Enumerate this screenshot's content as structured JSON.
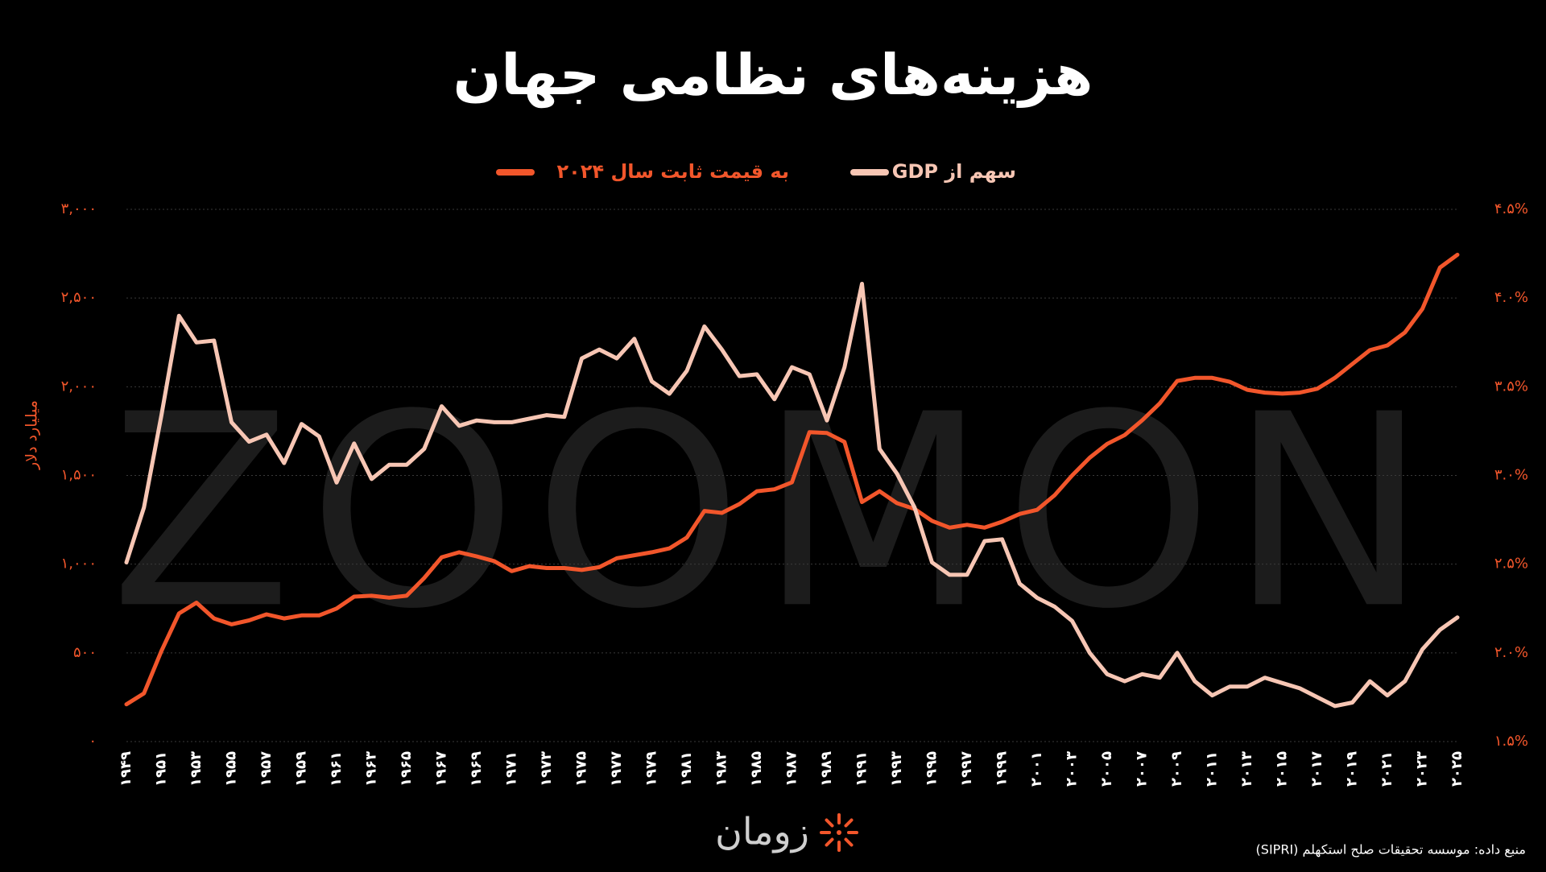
{
  "chart_data": {
    "type": "line",
    "title": "هزینه‌های نظامی جهان",
    "watermark": "ZOOMON",
    "y_label": "میلیارد دلار",
    "source": "منبع داده: موسسه تحقیقات صلح استکهلم (SIPRI)",
    "logo": "زومان",
    "categories": [
      "۱۹۴۹",
      null,
      "۱۹۵۱",
      null,
      "۱۹۵۳",
      null,
      "۱۹۵۵",
      null,
      "۱۹۵۷",
      null,
      "۱۹۵۹",
      null,
      "۱۹۶۱",
      null,
      "۱۹۶۳",
      null,
      "۱۹۶۵",
      null,
      "۱۹۶۷",
      null,
      "۱۹۶۹",
      null,
      "۱۹۷۱",
      null,
      "۱۹۷۳",
      null,
      "۱۹۷۵",
      null,
      "۱۹۷۷",
      null,
      "۱۹۷۹",
      null,
      "۱۹۸۱",
      null,
      "۱۹۸۳",
      null,
      "۱۹۸۵",
      null,
      "۱۹۸۷",
      null,
      "۱۹۸۹",
      null,
      "۱۹۹۱",
      null,
      "۱۹۹۳",
      null,
      "۱۹۹۵",
      null,
      "۱۹۹۷",
      null,
      "۱۹۹۹",
      null,
      "۲۰۰۱",
      null,
      "۲۰۰۳",
      null,
      "۲۰۰۵",
      null,
      "۲۰۰۷",
      null,
      "۲۰۰۹",
      null,
      "۲۰۱۱",
      null,
      "۲۰۱۳",
      null,
      "۲۰۱۵",
      null,
      "۲۰۱۷",
      null,
      "۲۰۱۹",
      null,
      "۲۰۲۱",
      null,
      "۲۰۲۳",
      null,
      "۲۰۲۵"
    ],
    "series": [
      {
        "name": "به قیمت ثابت سال ۲۰۲۴",
        "color": "#f2562b",
        "axis": "y",
        "values": [
          210,
          272,
          511,
          722,
          783,
          694,
          661,
          683,
          717,
          694,
          711,
          711,
          750,
          817,
          822,
          811,
          822,
          922,
          1039,
          1067,
          1044,
          1017,
          961,
          989,
          978,
          978,
          967,
          983,
          1033,
          1050,
          1067,
          1089,
          1150,
          1300,
          1289,
          1339,
          1411,
          1422,
          1461,
          1744,
          1739,
          1689,
          1350,
          1411,
          1344,
          1311,
          1244,
          1206,
          1222,
          1206,
          1239,
          1283,
          1306,
          1389,
          1500,
          1600,
          1678,
          1728,
          1811,
          1906,
          2033,
          2050,
          2050,
          2028,
          1983,
          1967,
          1961,
          1967,
          1989,
          2050,
          2128,
          2206,
          2233,
          2306,
          2439,
          2672,
          2744
        ]
      },
      {
        "name": "سهم از GDP",
        "color": "#f7c6b4",
        "axis": "y2",
        "values": [
          2.51,
          2.82,
          3.34,
          3.9,
          3.75,
          3.76,
          3.3,
          3.19,
          3.23,
          3.07,
          3.29,
          3.22,
          2.96,
          3.18,
          2.98,
          3.06,
          3.06,
          3.15,
          3.39,
          3.28,
          3.31,
          3.3,
          3.3,
          3.32,
          3.34,
          3.33,
          3.66,
          3.71,
          3.66,
          3.77,
          3.53,
          3.46,
          3.59,
          3.84,
          3.71,
          3.56,
          3.57,
          3.43,
          3.61,
          3.57,
          3.31,
          3.61,
          4.08,
          3.15,
          3.01,
          2.82,
          2.51,
          2.44,
          2.44,
          2.63,
          2.64,
          2.39,
          2.31,
          2.26,
          2.18,
          2.0,
          1.88,
          1.84,
          1.88,
          1.86,
          2.0,
          1.84,
          1.76,
          1.81,
          1.81,
          1.86,
          1.83,
          1.8,
          1.75,
          1.7,
          1.72,
          1.84,
          1.76,
          1.84,
          2.02,
          2.13,
          2.2
        ]
      }
    ],
    "ylim": [
      0,
      3000
    ],
    "yticks": [
      {
        "value": 0,
        "label": "۰"
      },
      {
        "value": 500,
        "label": "۵۰۰"
      },
      {
        "value": 1000,
        "label": "۱,۰۰۰"
      },
      {
        "value": 1500,
        "label": "۱,۵۰۰"
      },
      {
        "value": 2000,
        "label": "۲,۰۰۰"
      },
      {
        "value": 2500,
        "label": "۲,۵۰۰"
      },
      {
        "value": 3000,
        "label": "۳,۰۰۰"
      }
    ],
    "y2lim": [
      1.5,
      4.5
    ],
    "y2ticks": [
      {
        "value": 1.5,
        "label": "۱.۵%"
      },
      {
        "value": 2.0,
        "label": "۲.۰%"
      },
      {
        "value": 2.5,
        "label": "۲.۵%"
      },
      {
        "value": 3.0,
        "label": "۳.۰%"
      },
      {
        "value": 3.5,
        "label": "۳.۵%"
      },
      {
        "value": 4.0,
        "label": "۴.۰%"
      },
      {
        "value": 4.5,
        "label": "۴.۵%"
      }
    ],
    "grid": true
  }
}
